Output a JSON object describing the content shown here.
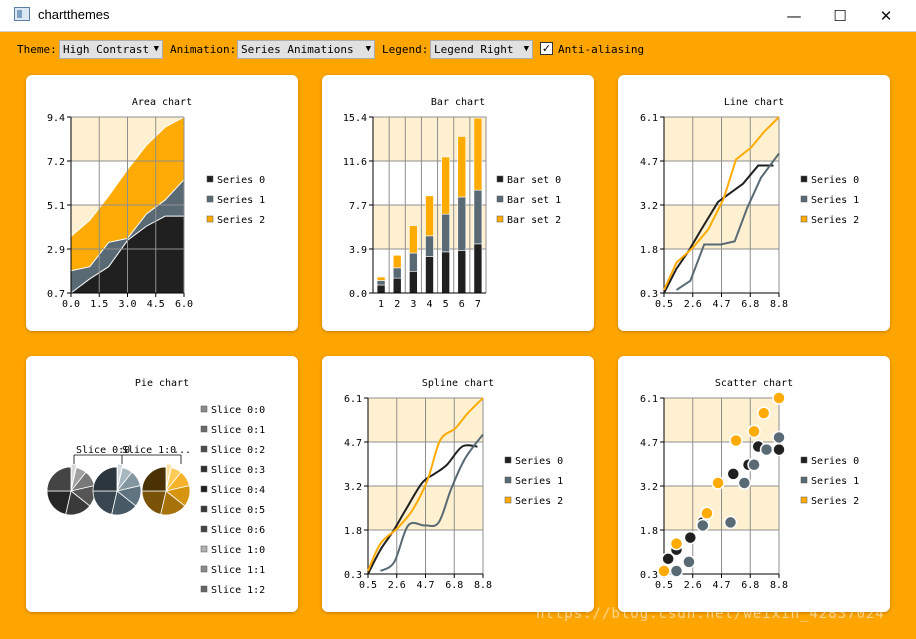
{
  "window": {
    "title": "chartthemes",
    "minimize_icon": "minimize-icon",
    "maximize_icon": "maximize-icon",
    "close_icon": "close-icon"
  },
  "toolbar": {
    "theme_label": "Theme:",
    "theme_value": "High Contrast",
    "animation_label": "Animation:",
    "animation_value": "Series Animations",
    "legend_label": "Legend:",
    "legend_value": "Legend Right",
    "antialias_label": "Anti-aliasing",
    "antialias_checked": true
  },
  "colors": {
    "series0": "#202020",
    "series1": "#596a74",
    "series2": "#ffab03",
    "band": "#fff0d1",
    "grid": "#8f8f8f",
    "accent": "#ffa500"
  },
  "watermark": "https://blog.csdn.net/weixin_42837024",
  "chart_data": [
    {
      "type": "area",
      "title": "Area chart",
      "x": [
        0,
        1,
        2,
        3,
        4,
        5,
        6
      ],
      "xlim": [
        0,
        6
      ],
      "xticks": [
        "0.0",
        "1.5",
        "3.0",
        "4.5",
        "6.0"
      ],
      "ylim": [
        0.7,
        9.4
      ],
      "yticks": [
        "0.7",
        "2.9",
        "5.1",
        "7.2",
        "9.4"
      ],
      "series": [
        {
          "name": "Series 0",
          "values": [
            0.7,
            1.4,
            2.0,
            3.3,
            4.0,
            4.5,
            4.5
          ]
        },
        {
          "name": "Series 1",
          "values": [
            1.8,
            2.0,
            3.2,
            3.4,
            4.6,
            5.3,
            6.3
          ]
        },
        {
          "name": "Series 2",
          "values": [
            3.5,
            4.3,
            5.5,
            6.8,
            8.0,
            8.9,
            9.4
          ]
        }
      ]
    },
    {
      "type": "bar",
      "title": "Bar chart",
      "categories": [
        "1",
        "2",
        "3",
        "4",
        "5",
        "6",
        "7"
      ],
      "ylim": [
        0,
        15.4
      ],
      "yticks": [
        "0.0",
        "3.9",
        "7.7",
        "11.6",
        "15.4"
      ],
      "series": [
        {
          "name": "Bar set 0",
          "values": [
            0.7,
            1.3,
            1.9,
            3.2,
            3.6,
            3.7,
            4.3
          ]
        },
        {
          "name": "Bar set 1",
          "values": [
            0.4,
            0.9,
            1.6,
            1.8,
            3.3,
            4.7,
            4.7
          ]
        },
        {
          "name": "Bar set 2",
          "values": [
            0.3,
            1.1,
            2.4,
            3.5,
            5.0,
            5.3,
            6.3
          ]
        }
      ]
    },
    {
      "type": "line",
      "title": "Line chart",
      "xlim": [
        0.5,
        8.8
      ],
      "ylim": [
        0.3,
        6.1
      ],
      "xticks": [
        "0.5",
        "2.6",
        "4.7",
        "6.8",
        "8.8"
      ],
      "yticks": [
        "0.3",
        "1.8",
        "3.2",
        "4.7",
        "6.1"
      ],
      "series": [
        {
          "name": "Series 0",
          "points": [
            [
              0.5,
              0.3
            ],
            [
              1.4,
              1.1
            ],
            [
              2.3,
              1.7
            ],
            [
              3.2,
              2.4
            ],
            [
              4.4,
              3.3
            ],
            [
              5.3,
              3.6
            ],
            [
              6.2,
              3.9
            ],
            [
              7.3,
              4.5
            ],
            [
              8.4,
              4.5
            ]
          ]
        },
        {
          "name": "Series 1",
          "points": [
            [
              1.4,
              0.4
            ],
            [
              2.4,
              0.7
            ],
            [
              3.4,
              1.9
            ],
            [
              4.6,
              1.9
            ],
            [
              5.6,
              2.0
            ],
            [
              6.5,
              3.1
            ],
            [
              7.5,
              4.1
            ],
            [
              8.8,
              4.9
            ]
          ]
        },
        {
          "name": "Series 2",
          "points": [
            [
              0.5,
              0.4
            ],
            [
              1.4,
              1.3
            ],
            [
              2.6,
              1.8
            ],
            [
              3.7,
              2.4
            ],
            [
              4.8,
              3.4
            ],
            [
              5.7,
              4.7
            ],
            [
              6.8,
              5.1
            ],
            [
              7.7,
              5.6
            ],
            [
              8.8,
              6.1
            ]
          ]
        }
      ]
    },
    {
      "type": "pie",
      "title": "Pie chart",
      "pie_labels": [
        "Slice 0:0",
        "Slice 1:0",
        "..."
      ],
      "legend": [
        "Slice 0:0",
        "Slice 0:1",
        "Slice 0:2",
        "Slice 0:3",
        "Slice 0:4",
        "Slice 0:5",
        "Slice 0:6",
        "Slice 1:0",
        "Slice 1:1",
        "Slice 1:2"
      ],
      "legend_colors": [
        "#8a8a8a",
        "#6b6b6b",
        "#4d4d4d",
        "#303030",
        "#202020",
        "#3a3a3a",
        "#444444",
        "#b0b0b0",
        "#8a8a8a",
        "#666666"
      ],
      "pies": [
        {
          "values": [
            1,
            2,
            3,
            4,
            5,
            6,
            7
          ],
          "colors": [
            "#d8d8d8",
            "#a0a0a0",
            "#787878",
            "#555555",
            "#3a3a3a",
            "#262626",
            "#444444"
          ]
        },
        {
          "values": [
            1,
            2,
            3,
            4,
            5,
            6,
            7
          ],
          "colors": [
            "#d2dade",
            "#a7b6bf",
            "#83959f",
            "#5f7380",
            "#475a66",
            "#37464f",
            "#2b363e"
          ]
        },
        {
          "values": [
            1,
            2,
            3,
            4,
            5,
            6,
            7
          ],
          "colors": [
            "#ffe0a0",
            "#ffca55",
            "#f5b22a",
            "#d6950f",
            "#a8720a",
            "#7a5208",
            "#4a3205"
          ]
        }
      ]
    },
    {
      "type": "line",
      "title": "Spline chart",
      "spline": true,
      "xlim": [
        0.5,
        8.8
      ],
      "ylim": [
        0.3,
        6.1
      ],
      "xticks": [
        "0.5",
        "2.6",
        "4.7",
        "6.8",
        "8.8"
      ],
      "yticks": [
        "0.3",
        "1.8",
        "3.2",
        "4.7",
        "6.1"
      ],
      "series": [
        {
          "name": "Series 0",
          "points": [
            [
              0.5,
              0.3
            ],
            [
              1.4,
              1.1
            ],
            [
              2.3,
              1.7
            ],
            [
              3.2,
              2.4
            ],
            [
              4.4,
              3.3
            ],
            [
              5.3,
              3.6
            ],
            [
              6.2,
              3.9
            ],
            [
              7.3,
              4.5
            ],
            [
              8.4,
              4.5
            ]
          ]
        },
        {
          "name": "Series 1",
          "points": [
            [
              1.4,
              0.4
            ],
            [
              2.4,
              0.7
            ],
            [
              3.4,
              1.9
            ],
            [
              4.6,
              1.9
            ],
            [
              5.6,
              2.0
            ],
            [
              6.5,
              3.1
            ],
            [
              7.5,
              4.1
            ],
            [
              8.8,
              4.9
            ]
          ]
        },
        {
          "name": "Series 2",
          "points": [
            [
              0.5,
              0.4
            ],
            [
              1.4,
              1.3
            ],
            [
              2.6,
              1.8
            ],
            [
              3.7,
              2.4
            ],
            [
              4.8,
              3.4
            ],
            [
              5.7,
              4.7
            ],
            [
              6.8,
              5.1
            ],
            [
              7.7,
              5.6
            ],
            [
              8.8,
              6.1
            ]
          ]
        }
      ]
    },
    {
      "type": "scatter",
      "title": "Scatter chart",
      "xlim": [
        0.5,
        8.8
      ],
      "ylim": [
        0.3,
        6.1
      ],
      "xticks": [
        "0.5",
        "2.6",
        "4.7",
        "6.8",
        "8.8"
      ],
      "yticks": [
        "0.3",
        "1.8",
        "3.2",
        "4.7",
        "6.1"
      ],
      "series": [
        {
          "name": "Series 0",
          "points": [
            [
              0.8,
              0.8
            ],
            [
              1.4,
              1.1
            ],
            [
              2.4,
              1.5
            ],
            [
              3.3,
              2.0
            ],
            [
              4.4,
              3.3
            ],
            [
              5.5,
              3.6
            ],
            [
              6.6,
              3.9
            ],
            [
              7.3,
              4.5
            ],
            [
              8.8,
              4.4
            ]
          ]
        },
        {
          "name": "Series 1",
          "points": [
            [
              1.4,
              0.4
            ],
            [
              2.3,
              0.7
            ],
            [
              3.3,
              1.9
            ],
            [
              5.3,
              2.0
            ],
            [
              6.3,
              3.3
            ],
            [
              7.0,
              3.9
            ],
            [
              7.9,
              4.4
            ],
            [
              8.8,
              4.8
            ]
          ]
        },
        {
          "name": "Series 2",
          "points": [
            [
              0.5,
              0.4
            ],
            [
              1.4,
              1.3
            ],
            [
              3.6,
              2.3
            ],
            [
              4.4,
              3.3
            ],
            [
              5.7,
              4.7
            ],
            [
              7.0,
              5.0
            ],
            [
              7.7,
              5.6
            ],
            [
              8.8,
              6.1
            ]
          ]
        }
      ]
    }
  ]
}
